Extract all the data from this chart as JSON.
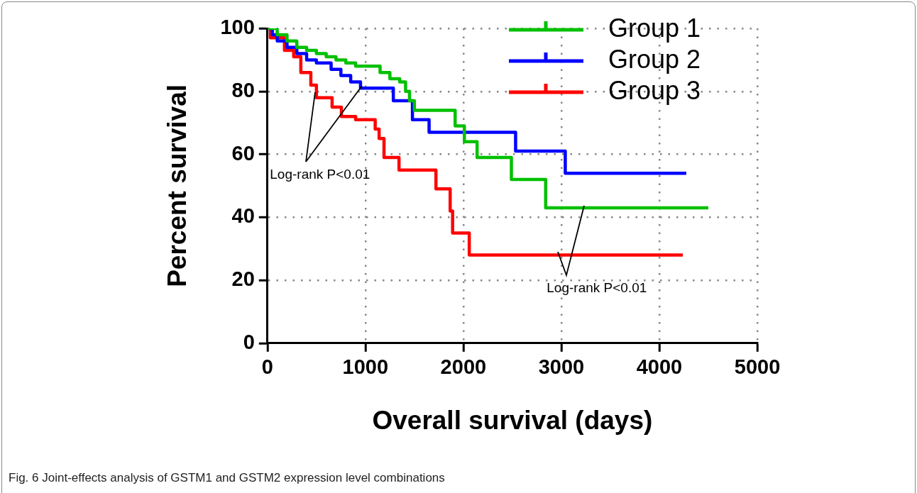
{
  "chart_data": {
    "type": "step",
    "xlabel": "Overall survival (days)",
    "ylabel": "Percent survival",
    "xlim": [
      0,
      5000
    ],
    "xticks": [
      0,
      1000,
      2000,
      3000,
      4000,
      5000
    ],
    "ylim": [
      0,
      100
    ],
    "yticks": [
      0,
      20,
      40,
      60,
      80,
      100
    ],
    "grid": true,
    "legend": "top right",
    "marker": "none",
    "line_style": "solid",
    "series": [
      {
        "name": "Group 1",
        "color": "#00c000",
        "x": [
          0,
          100,
          200,
          300,
          400,
          500,
          600,
          700,
          800,
          900,
          1150,
          1250,
          1350,
          1410,
          1450,
          1500,
          1916,
          2010,
          2140,
          2490,
          2840,
          4500
        ],
        "values": [
          100,
          98,
          96,
          94,
          93,
          92,
          91,
          90,
          89,
          88,
          86,
          84,
          83,
          80,
          77,
          74,
          69,
          64,
          59,
          52,
          43,
          43
        ]
      },
      {
        "name": "Group 2",
        "color": "#0000ff",
        "x": [
          0,
          50,
          100,
          200,
          300,
          400,
          500,
          650,
          750,
          850,
          950,
          1285,
          1480,
          1650,
          2533,
          3040,
          4275
        ],
        "values": [
          100,
          98,
          96,
          94,
          92,
          90,
          89,
          87,
          85,
          83,
          81,
          77,
          71,
          67,
          61,
          54,
          54
        ]
      },
      {
        "name": "Group 3",
        "color": "#ff0000",
        "x": [
          0,
          30,
          174,
          268,
          341,
          443,
          500,
          660,
          755,
          900,
          1100,
          1140,
          1190,
          1343,
          1720,
          1865,
          1890,
          2060,
          4240
        ],
        "values": [
          100,
          97,
          93,
          91,
          86,
          82,
          78,
          75,
          72,
          71,
          68,
          65,
          59,
          55,
          49,
          42,
          35,
          28,
          28
        ]
      }
    ],
    "annotations": [
      "Log-rank P<0.01",
      "Log-rank P<0.01",
      "Fig. 6 Joint-effects analysis of GSTM1 and GSTM2 expression level combinations"
    ]
  }
}
